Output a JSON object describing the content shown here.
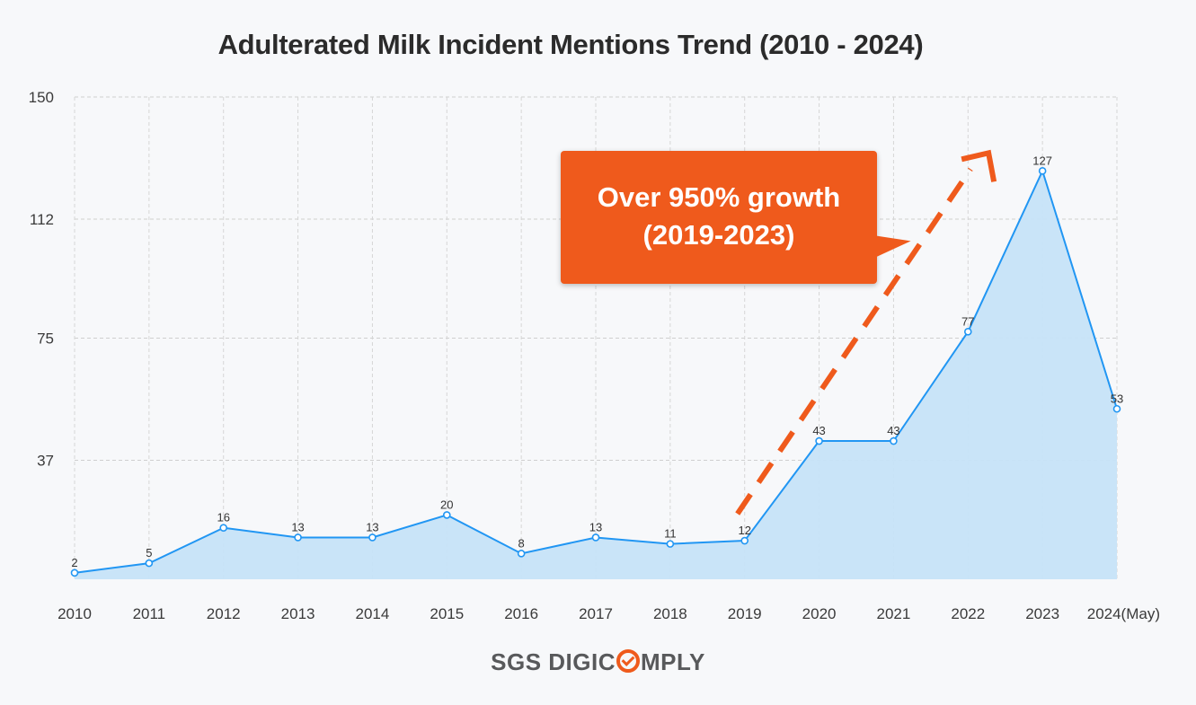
{
  "chart_data": {
    "type": "area",
    "title": "Adulterated Milk Incident Mentions Trend (2010 - 2024)",
    "categories": [
      "2010",
      "2011",
      "2012",
      "2013",
      "2014",
      "2015",
      "2016",
      "2017",
      "2018",
      "2019",
      "2020",
      "2021",
      "2022",
      "2023",
      "2024(May)"
    ],
    "values": [
      2,
      5,
      16,
      13,
      13,
      20,
      8,
      13,
      11,
      12,
      43,
      43,
      77,
      127,
      53
    ],
    "yticks": [
      150,
      112,
      75,
      37
    ],
    "ylim": [
      0,
      150
    ],
    "xlabel": "",
    "ylabel": "",
    "grid": true,
    "series_color": "#2196f3",
    "fill_color": "#c6e3f8",
    "annotation": {
      "line1": "Over 950% growth",
      "line2": "(2019-2023)",
      "color": "#ef5a1c",
      "arrow_from": "2019",
      "arrow_to": "2023"
    }
  },
  "brand": {
    "part1": "SGS DIGIC",
    "part2": "MPLY",
    "accent": "#ef5a1c"
  }
}
